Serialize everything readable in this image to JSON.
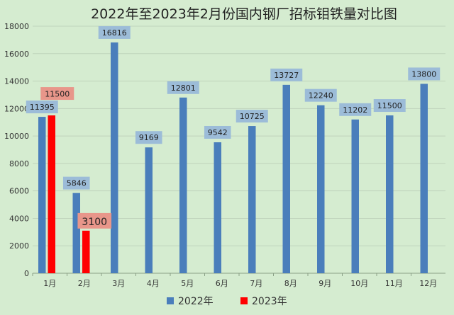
{
  "chart_data": {
    "type": "bar",
    "title": "2022年至2023年2月份国内钢厂招标钼铁量对比图",
    "categories": [
      "1月",
      "2月",
      "3月",
      "4月",
      "5月",
      "6月",
      "7月",
      "8月",
      "9月",
      "10月",
      "11月",
      "12月"
    ],
    "series": [
      {
        "name": "2022年",
        "color": "#4a7ebb",
        "values": [
          11395,
          5846,
          16816,
          9169,
          12801,
          9542,
          10725,
          13727,
          12240,
          11202,
          11500,
          13800
        ]
      },
      {
        "name": "2023年",
        "color": "#ff0000",
        "values": [
          11500,
          3100,
          null,
          null,
          null,
          null,
          null,
          null,
          null,
          null,
          null,
          null
        ]
      }
    ],
    "ylim": [
      0,
      18000
    ],
    "yticks": [
      "0",
      "2000",
      "4000",
      "6000",
      "8000",
      "10000",
      "12000",
      "14000",
      "16000",
      "18000"
    ],
    "grid": true,
    "legend_position": "bottom",
    "label_colors": {
      "2022年": "#9cbcd8",
      "2023年": "#e8968a"
    }
  }
}
